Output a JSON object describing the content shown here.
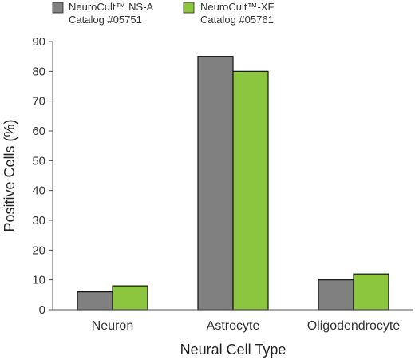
{
  "chart_data": {
    "type": "bar",
    "categories": [
      "Neuron",
      "Astrocyte",
      "Oligodendrocyte"
    ],
    "series": [
      {
        "name": "NeuroCult™ NS-A",
        "catalog": "Catalog #05751",
        "color": "#808080",
        "values": [
          6,
          85,
          10
        ]
      },
      {
        "name": "NeuroCult™-XF",
        "catalog": "Catalog #05761",
        "color": "#8cc63f",
        "values": [
          8,
          80,
          12
        ]
      }
    ],
    "xlabel": "Neural Cell Type",
    "ylabel": "Positive Cells (%)",
    "ylim": [
      0,
      90
    ],
    "yticks": [
      0,
      10,
      20,
      30,
      40,
      50,
      60,
      70,
      80,
      90
    ],
    "grid": false,
    "legend_position": "top"
  }
}
